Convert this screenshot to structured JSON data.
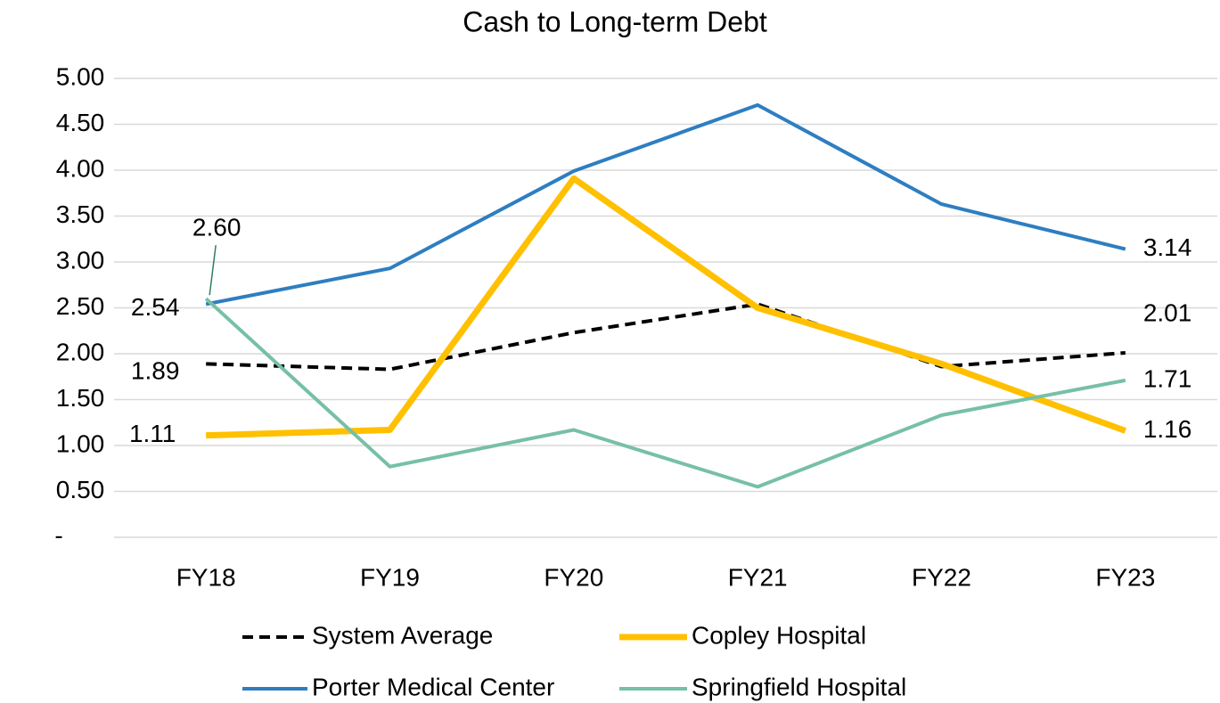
{
  "chart_data": {
    "type": "line",
    "title": "Cash to Long-term Debt",
    "categories": [
      "FY18",
      "FY19",
      "FY20",
      "FY21",
      "FY22",
      "FY23"
    ],
    "ylim": [
      0,
      5
    ],
    "yticks": [
      {
        "value": 0,
        "label": "-"
      },
      {
        "value": 0.5,
        "label": "0.50"
      },
      {
        "value": 1,
        "label": "1.00"
      },
      {
        "value": 1.5,
        "label": "1.50"
      },
      {
        "value": 2,
        "label": "2.00"
      },
      {
        "value": 2.5,
        "label": "2.50"
      },
      {
        "value": 3,
        "label": "3.00"
      },
      {
        "value": 3.5,
        "label": "3.50"
      },
      {
        "value": 4,
        "label": "4.00"
      },
      {
        "value": 4.5,
        "label": "4.50"
      },
      {
        "value": 5,
        "label": "5.00"
      }
    ],
    "grid": true,
    "series": [
      {
        "name": "System Average",
        "color": "#000000",
        "dashed": true,
        "values": [
          1.89,
          1.83,
          2.23,
          2.54,
          1.86,
          2.01
        ],
        "value_labels": [
          "1.89",
          null,
          null,
          null,
          null,
          "2.01"
        ]
      },
      {
        "name": "Copley Hospital",
        "color": "#FFC000",
        "values": [
          1.11,
          1.17,
          3.91,
          2.5,
          1.89,
          1.16
        ],
        "value_labels": [
          "1.11",
          null,
          null,
          null,
          null,
          "1.16"
        ]
      },
      {
        "name": "Porter Medical Center",
        "color": "#2E7EC1",
        "values": [
          2.54,
          2.93,
          3.99,
          4.71,
          3.63,
          3.14
        ],
        "value_labels": [
          "2.54",
          null,
          null,
          null,
          null,
          "3.14"
        ]
      },
      {
        "name": "Springfield Hospital",
        "color": "#76C0A6",
        "values": [
          2.6,
          0.77,
          1.17,
          0.55,
          1.33,
          1.71
        ],
        "value_labels": [
          "2.60",
          null,
          null,
          null,
          null,
          "1.71"
        ]
      }
    ]
  }
}
